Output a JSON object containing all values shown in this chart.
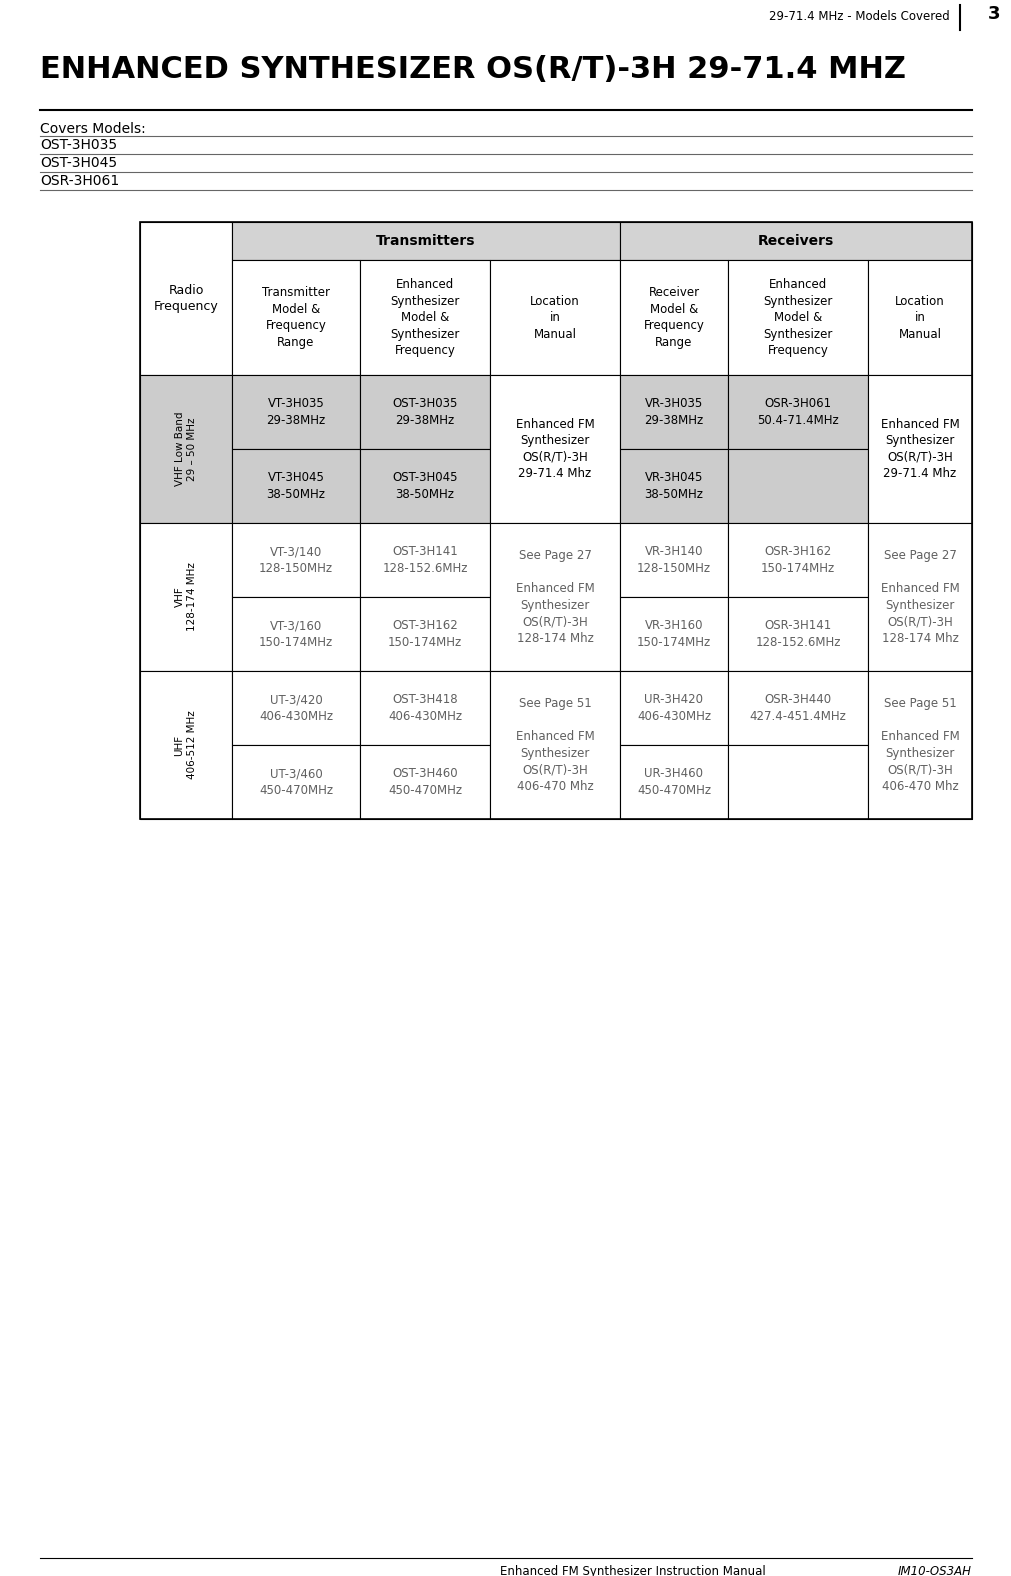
{
  "title": "ENHANCED SYNTHESIZER OS(R/T)-3H 29-71.4 MHZ",
  "header_right": "29-71.4 MHz - Models Covered",
  "page_number": "3",
  "covers_models_label": "Covers Models:",
  "models": [
    "OST-3H035",
    "OST-3H045",
    "OSR-3H061"
  ],
  "footer_left": "Enhanced FM Synthesizer Instruction Manual",
  "footer_right": "IM10-OS3AH",
  "bg_color_header": "#d3d3d3",
  "bg_color_row0": "#cccccc",
  "bg_color_white": "#ffffff",
  "table_data": {
    "vhf_low": {
      "label": "VHF Low Band\n29 – 50 MHz",
      "tx1": "VT-3H035\n29-38MHz",
      "tx1_synth": "OST-3H035\n29-38MHz",
      "tx_loc": "Enhanced FM\nSynthesizer\nOS(R/T)-3H\n29-71.4 Mhz",
      "tx2": "VT-3H045\n38-50MHz",
      "tx2_synth": "OST-3H045\n38-50MHz",
      "rx1": "VR-3H035\n29-38MHz",
      "rx1_synth": "OSR-3H061\n50.4-71.4MHz",
      "rx_loc": "Enhanced FM\nSynthesizer\nOS(R/T)-3H\n29-71.4 Mhz",
      "rx2": "VR-3H045\n38-50MHz",
      "rx2_synth": ""
    },
    "vhf": {
      "label": "VHF\n128-174 MHz",
      "tx1": "VT-3/140\n128-150MHz",
      "tx1_synth": "OST-3H141\n128-152.6MHz",
      "tx_loc": "See Page 27\n\nEnhanced FM\nSynthesizer\nOS(R/T)-3H\n128-174 Mhz",
      "tx2": "VT-3/160\n150-174MHz",
      "tx2_synth": "OST-3H162\n150-174MHz",
      "rx1": "VR-3H140\n128-150MHz",
      "rx1_synth": "OSR-3H162\n150-174MHz",
      "rx_loc": "See Page 27\n\nEnhanced FM\nSynthesizer\nOS(R/T)-3H\n128-174 Mhz",
      "rx2": "VR-3H160\n150-174MHz",
      "rx2_synth": "OSR-3H141\n128-152.6MHz"
    },
    "uhf": {
      "label": "UHF\n406-512 MHz",
      "tx1": "UT-3/420\n406-430MHz",
      "tx1_synth": "OST-3H418\n406-430MHz",
      "tx_loc": "See Page 51\n\nEnhanced FM\nSynthesizer\nOS(R/T)-3H\n406-470 Mhz",
      "tx2": "UT-3/460\n450-470MHz",
      "tx2_synth": "OST-3H460\n450-470MHz",
      "rx1": "UR-3H420\n406-430MHz",
      "rx1_synth": "OSR-3H440\n427.4-451.4MHz",
      "rx_loc": "See Page 51\n\nEnhanced FM\nSynthesizer\nOS(R/T)-3H\n406-470 Mhz",
      "rx2": "UR-3H460\n450-470MHz",
      "rx2_synth": ""
    }
  }
}
